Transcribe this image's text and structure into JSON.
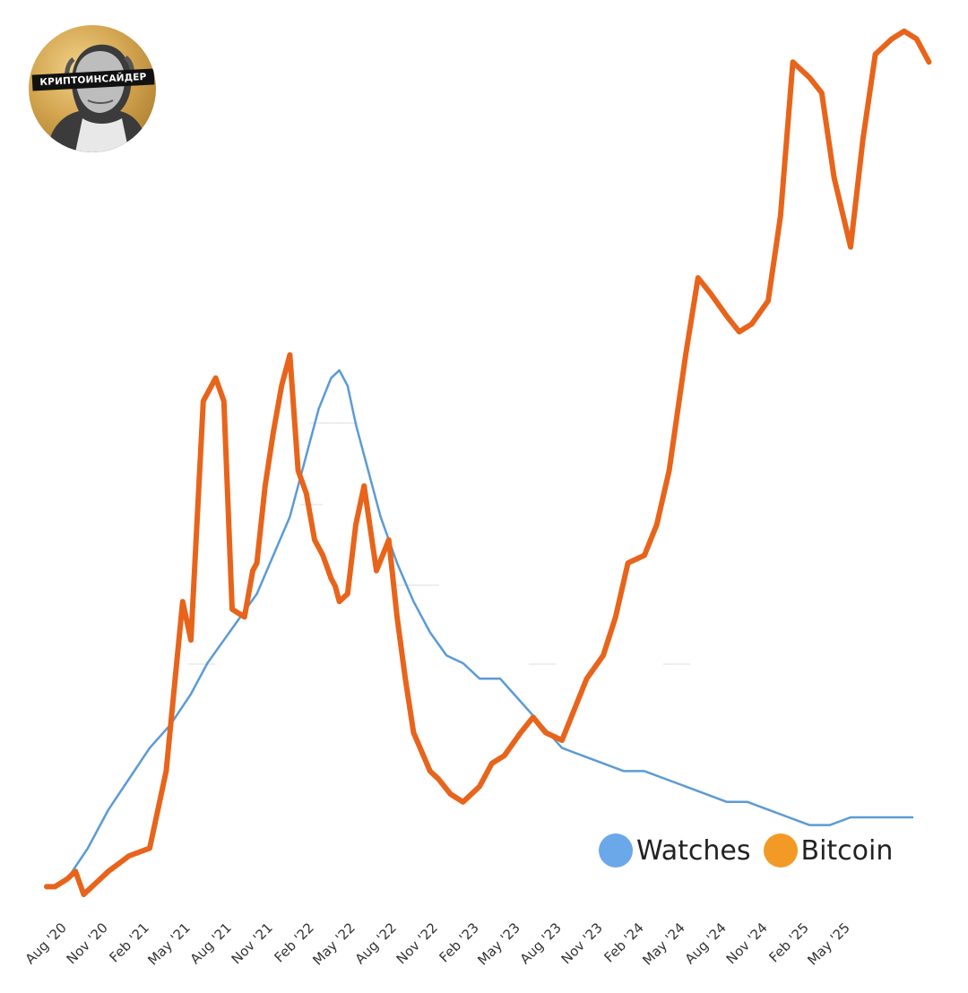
{
  "badge": {
    "text": "КРИПТОИНСАЙДЕР"
  },
  "colors": {
    "watches": "#5b9bd5",
    "bitcoin": "#e8641b",
    "legend_watches": "#6aa8ea",
    "legend_bitcoin": "#f39a26"
  },
  "chart_data": {
    "type": "line",
    "x_tick_labels": [
      "Aug '20",
      "Nov '20",
      "Feb '21",
      "May '21",
      "Aug '21",
      "Nov '21",
      "Feb '22",
      "May '22",
      "Aug '22",
      "Nov '22",
      "Feb '23",
      "May '23",
      "Aug '23",
      "Nov '23",
      "Feb '24",
      "May '24",
      "Aug '24",
      "Nov '24",
      "Feb '25",
      "May '25"
    ],
    "y_axis": "unlabeled, relative index",
    "grid": false,
    "legend": {
      "position": "bottom-right",
      "entries": [
        "Watches",
        "Bitcoin"
      ]
    },
    "series": [
      {
        "name": "Watches",
        "color": "#5b9bd5",
        "x": [
          0,
          0.5,
          1,
          1.5,
          2,
          2.5,
          3,
          3.4,
          3.8,
          4.2,
          4.6,
          5,
          5.4,
          5.8,
          6.1,
          6.4,
          6.6,
          6.8,
          7,
          7.3,
          7.6,
          8,
          8.4,
          8.8,
          9.2,
          9.6,
          10,
          10.5,
          11,
          11.5,
          12,
          12.5,
          13,
          13.5,
          14,
          14.5,
          15,
          15.5,
          16,
          16.5,
          17,
          17.5,
          18,
          18.5,
          19,
          19.5,
          20,
          20.5
        ],
        "y": [
          2,
          6,
          11,
          15,
          19,
          22,
          26,
          30,
          33,
          36,
          39,
          44,
          49,
          57,
          63,
          67,
          68,
          66,
          61,
          55,
          49,
          43,
          38,
          34,
          31,
          30,
          28,
          28,
          25,
          22,
          19,
          18,
          17,
          16,
          16,
          15,
          14,
          13,
          12,
          12,
          11,
          10,
          9,
          9,
          10,
          10,
          10,
          10
        ]
      },
      {
        "name": "Bitcoin",
        "color": "#e8641b",
        "x": [
          -0.5,
          -0.3,
          0,
          0.2,
          0.4,
          0.6,
          1.0,
          1.5,
          2.0,
          2.4,
          2.8,
          3.0,
          3.3,
          3.6,
          3.8,
          4.0,
          4.3,
          4.5,
          4.6,
          4.8,
          5.0,
          5.2,
          5.4,
          5.6,
          5.8,
          6.0,
          6.2,
          6.4,
          6.5,
          6.6,
          6.8,
          7.0,
          7.2,
          7.5,
          7.8,
          8.0,
          8.2,
          8.4,
          8.8,
          9.0,
          9.3,
          9.6,
          10.0,
          10.3,
          10.6,
          11.0,
          11.3,
          11.6,
          12.0,
          12.3,
          12.6,
          13.0,
          13.3,
          13.6,
          14.0,
          14.3,
          14.6,
          15.0,
          15.3,
          15.6,
          16.0,
          16.3,
          16.6,
          17.0,
          17.3,
          17.6,
          18.0,
          18.3,
          18.6,
          19.0,
          19.3,
          19.6,
          20.0,
          20.3,
          20.6,
          20.9
        ],
        "y": [
          1,
          1,
          2,
          3,
          0,
          1,
          3,
          5,
          6,
          16,
          38,
          33,
          64,
          67,
          64,
          37,
          36,
          42,
          43,
          53,
          60,
          66,
          70,
          55,
          52,
          46,
          44,
          41,
          40,
          38,
          39,
          48,
          53,
          42,
          46,
          36,
          28,
          21,
          16,
          15,
          13,
          12,
          14,
          17,
          18,
          21,
          23,
          21,
          20,
          24,
          28,
          31,
          36,
          43,
          44,
          48,
          55,
          70,
          80,
          78,
          75,
          73,
          74,
          77,
          88,
          108,
          106,
          104,
          93,
          84,
          98,
          109,
          111,
          112,
          111,
          108
        ]
      }
    ]
  }
}
